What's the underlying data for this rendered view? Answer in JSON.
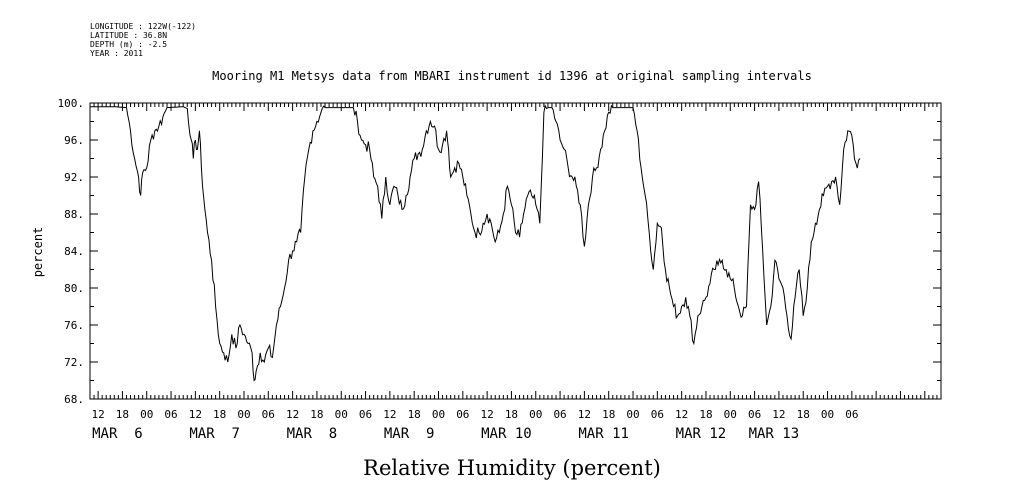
{
  "header": {
    "longitude": "LONGITUDE : 122W(-122)",
    "latitude": "LATITUDE : 36.8N",
    "depth": "DEPTH (m) : -2.5",
    "year": "YEAR : 2011"
  },
  "chart_data": {
    "type": "line",
    "title": "Mooring M1 Metsys data from MBARI instrument id 1396 at original sampling intervals",
    "ylabel": "percent",
    "xlabel": "Relative Humidity (percent)",
    "ylim": [
      68,
      100
    ],
    "xlim_hours": [
      -2,
      208
    ],
    "grid": false,
    "y_ticks": [
      "100.",
      "96.",
      "92.",
      "88.",
      "84.",
      "80.",
      "76.",
      "72.",
      "68."
    ],
    "y_tick_values": [
      100,
      96,
      92,
      88,
      84,
      80,
      76,
      72,
      68
    ],
    "x_hour_ticks": [
      "12",
      "18",
      "00",
      "06",
      "12",
      "18",
      "00",
      "06",
      "12",
      "18",
      "00",
      "06",
      "12",
      "18",
      "00",
      "06",
      "12",
      "18",
      "00",
      "06",
      "12",
      "18",
      "00",
      "06",
      "12",
      "18",
      "00",
      "06",
      "12",
      "18",
      "00",
      "06"
    ],
    "date_labels": [
      {
        "label": "MAR  6",
        "hour": 0
      },
      {
        "label": "MAR  7",
        "hour": 24
      },
      {
        "label": "MAR  8",
        "hour": 48
      },
      {
        "label": "MAR  9",
        "hour": 72
      },
      {
        "label": "MAR 10",
        "hour": 96
      },
      {
        "label": "MAR 11",
        "hour": 120
      },
      {
        "label": "MAR 12",
        "hour": 144
      },
      {
        "label": "MAR 13",
        "hour": 162
      }
    ],
    "series": [
      {
        "color": "#000000",
        "points": [
          [
            -2,
            99.6
          ],
          [
            4,
            99.6
          ],
          [
            7,
            99.5
          ],
          [
            8,
            97
          ],
          [
            9,
            94
          ],
          [
            10,
            92
          ],
          [
            10.5,
            90
          ],
          [
            11,
            92.5
          ],
          [
            12,
            93
          ],
          [
            13,
            96
          ],
          [
            14,
            97
          ],
          [
            15,
            97.5
          ],
          [
            16,
            98.5
          ],
          [
            17,
            99.5
          ],
          [
            21,
            99.6
          ],
          [
            22,
            99.4
          ],
          [
            23,
            96
          ],
          [
            23.5,
            94
          ],
          [
            24,
            96
          ],
          [
            24.5,
            95
          ],
          [
            25,
            97
          ],
          [
            25.5,
            93
          ],
          [
            26,
            90
          ],
          [
            27,
            86
          ],
          [
            28,
            83
          ],
          [
            29,
            78
          ],
          [
            30,
            74
          ],
          [
            31,
            73
          ],
          [
            32,
            72
          ],
          [
            33,
            75
          ],
          [
            34,
            73.5
          ],
          [
            35,
            76
          ],
          [
            36,
            75
          ],
          [
            37,
            74
          ],
          [
            38,
            73
          ],
          [
            38.5,
            70
          ],
          [
            39,
            71
          ],
          [
            40,
            73
          ],
          [
            41,
            72
          ],
          [
            42,
            73.5
          ],
          [
            43,
            72.5
          ],
          [
            44,
            76
          ],
          [
            45,
            78
          ],
          [
            46,
            80
          ],
          [
            47,
            83
          ],
          [
            48,
            84
          ],
          [
            49,
            85
          ],
          [
            50,
            86
          ],
          [
            51,
            92
          ],
          [
            52,
            95
          ],
          [
            53,
            97
          ],
          [
            54,
            98
          ],
          [
            55,
            99
          ],
          [
            56,
            99.5
          ],
          [
            63,
            99.5
          ],
          [
            64,
            98
          ],
          [
            65,
            96
          ],
          [
            66,
            95.5
          ],
          [
            67,
            95
          ],
          [
            68,
            92
          ],
          [
            69,
            91
          ],
          [
            70,
            87.5
          ],
          [
            71,
            92
          ],
          [
            72,
            89
          ],
          [
            73,
            91
          ],
          [
            74,
            90
          ],
          [
            75,
            88.5
          ],
          [
            76,
            90
          ],
          [
            77,
            92
          ],
          [
            78,
            94
          ],
          [
            79,
            94.5
          ],
          [
            80,
            95
          ],
          [
            81,
            97
          ],
          [
            82,
            98
          ],
          [
            83,
            97.5
          ],
          [
            84,
            95
          ],
          [
            85,
            95.5
          ],
          [
            86,
            97
          ],
          [
            86.5,
            95
          ],
          [
            87,
            92
          ],
          [
            88,
            93
          ],
          [
            89,
            93.5
          ],
          [
            90,
            92
          ],
          [
            91,
            90
          ],
          [
            92,
            88
          ],
          [
            93,
            86
          ],
          [
            94,
            86
          ],
          [
            95,
            87
          ],
          [
            96,
            88
          ],
          [
            97,
            87
          ],
          [
            98,
            85
          ],
          [
            99,
            86
          ],
          [
            100,
            88
          ],
          [
            101,
            91
          ],
          [
            102,
            89
          ],
          [
            103,
            86
          ],
          [
            104,
            85.5
          ],
          [
            105,
            88
          ],
          [
            106,
            90
          ],
          [
            107,
            90
          ],
          [
            108,
            89
          ],
          [
            109,
            87
          ],
          [
            110,
            99
          ],
          [
            111,
            99.5
          ],
          [
            112,
            99.5
          ],
          [
            113,
            98
          ],
          [
            114,
            96
          ],
          [
            115,
            95
          ],
          [
            116,
            93
          ],
          [
            117,
            92
          ],
          [
            118,
            91
          ],
          [
            119,
            89
          ],
          [
            120,
            84.5
          ],
          [
            121,
            89
          ],
          [
            122,
            92
          ],
          [
            123,
            93
          ],
          [
            124,
            95
          ],
          [
            125,
            97
          ],
          [
            126,
            99
          ],
          [
            127,
            99.5
          ],
          [
            132,
            99.5
          ],
          [
            133,
            97
          ],
          [
            134,
            93
          ],
          [
            135,
            90
          ],
          [
            136,
            86
          ],
          [
            137,
            82
          ],
          [
            138,
            87
          ],
          [
            139,
            86.5
          ],
          [
            140,
            82
          ],
          [
            141,
            80
          ],
          [
            142,
            78
          ],
          [
            143,
            77
          ],
          [
            144,
            78
          ],
          [
            145,
            79
          ],
          [
            146,
            77
          ],
          [
            147,
            74
          ],
          [
            148,
            77
          ],
          [
            149,
            78
          ],
          [
            150,
            79
          ],
          [
            151,
            80.5
          ],
          [
            152,
            82
          ],
          [
            153,
            82.5
          ],
          [
            154,
            83
          ],
          [
            155,
            82
          ],
          [
            156,
            81
          ],
          [
            157,
            80
          ],
          [
            158,
            78
          ],
          [
            159,
            77
          ],
          [
            160,
            78
          ],
          [
            161,
            89
          ],
          [
            162,
            88.5
          ],
          [
            163,
            91.5
          ],
          [
            164,
            84
          ],
          [
            165,
            76
          ],
          [
            166,
            78
          ],
          [
            167,
            83
          ],
          [
            168,
            81
          ],
          [
            169,
            80
          ],
          [
            170,
            77
          ],
          [
            171,
            74.5
          ],
          [
            172,
            79
          ],
          [
            173,
            82
          ],
          [
            174,
            77
          ],
          [
            175,
            80
          ],
          [
            176,
            85
          ],
          [
            177,
            87
          ],
          [
            178,
            88.5
          ],
          [
            179,
            90
          ],
          [
            180,
            91
          ],
          [
            181,
            91.5
          ],
          [
            182,
            92
          ],
          [
            183,
            89
          ],
          [
            184,
            95
          ],
          [
            185,
            97
          ],
          [
            186,
            96.5
          ],
          [
            187,
            93.5
          ],
          [
            188,
            94
          ]
        ]
      }
    ]
  }
}
